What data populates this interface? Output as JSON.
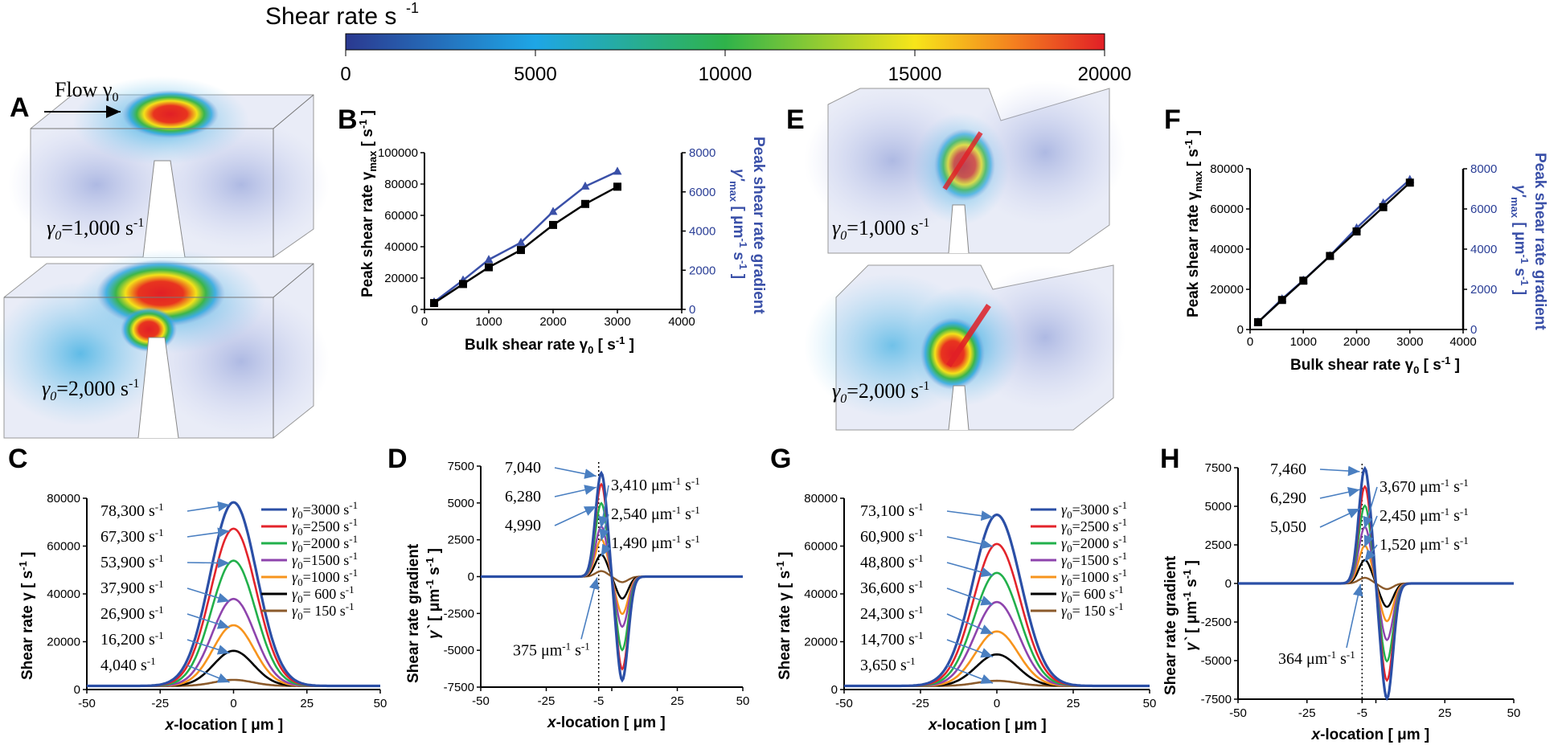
{
  "colorbar": {
    "title": "Shear rate s",
    "title_sup": "-1",
    "ticks": [
      "0",
      "5000",
      "10000",
      "15000",
      "20000"
    ]
  },
  "panel_labels": {
    "A": "A",
    "B": "B",
    "C": "C",
    "D": "D",
    "E": "E",
    "F": "F",
    "G": "G",
    "H": "H"
  },
  "sim_labels": {
    "flow": "Flow γ",
    "flow_sub": "0",
    "A_top": "γ",
    "A_top_sub": "0",
    "A_top_val": "=1,000 s",
    "A_top_sup": "-1",
    "A_bot": "γ",
    "A_bot_sub": "0",
    "A_bot_val": "=2,000 s",
    "A_bot_sup": "-1",
    "E_top": "γ",
    "E_top_sub": "0",
    "E_top_val": "=1,000 s",
    "E_top_sup": "-1",
    "E_bot": "γ",
    "E_bot_sub": "0",
    "E_bot_val": "=2,000 s",
    "E_bot_sup": "-1"
  },
  "colors": {
    "s3000": "#2b4fa6",
    "s2500": "#e3242b",
    "s2000": "#22b04b",
    "s1500": "#8e44ad",
    "s1000": "#f7941d",
    "s600": "#000000",
    "s150": "#8b5a2b",
    "arrow": "#4a7fc1",
    "blue_axis": "#3a50a8"
  },
  "legend": [
    "γ0=3000 s-1",
    "γ0=2500 s-1",
    "γ0=2000 s-1",
    "γ0=1500 s-1",
    "γ0=1000 s-1",
    "γ0= 600 s-1",
    "γ0= 150 s-1"
  ],
  "legend_parts": [
    {
      "pre": "γ",
      "sub": "0",
      "val": "=3000 s",
      "sup": "-1"
    },
    {
      "pre": "γ",
      "sub": "0",
      "val": "=2500 s",
      "sup": "-1"
    },
    {
      "pre": "γ",
      "sub": "0",
      "val": "=2000 s",
      "sup": "-1"
    },
    {
      "pre": "γ",
      "sub": "0",
      "val": "=1500 s",
      "sup": "-1"
    },
    {
      "pre": "γ",
      "sub": "0",
      "val": "=1000 s",
      "sup": "-1"
    },
    {
      "pre": "γ",
      "sub": "0",
      "val": "= 600 s",
      "sup": "-1"
    },
    {
      "pre": "γ",
      "sub": "0",
      "val": "= 150 s",
      "sup": "-1"
    }
  ],
  "chart_data": [
    {
      "panel": "B",
      "type": "line",
      "xlabel": "Bulk shear rate γ0 [ s-1 ]",
      "ylabel": "Peak shear rate γmax [ s-1 ]",
      "y2label": "Peak shear rate gradient γ'max [ μm-1 s-1 ]",
      "xlim": [
        0,
        4000
      ],
      "ylim": [
        0,
        100000
      ],
      "y2lim": [
        0,
        8000
      ],
      "x_ticks": [
        "0",
        "1000",
        "2000",
        "3000",
        "4000"
      ],
      "y_ticks": [
        "0",
        "20000",
        "40000",
        "60000",
        "80000",
        "100000"
      ],
      "y2_ticks": [
        "0",
        "2000",
        "4000",
        "6000",
        "8000"
      ],
      "series": [
        {
          "axis": "left",
          "marker": "square",
          "x": [
            150,
            600,
            1000,
            1500,
            2000,
            2500,
            3000
          ],
          "values": [
            4040,
            16200,
            26900,
            37900,
            53900,
            67300,
            78300
          ]
        },
        {
          "axis": "right",
          "marker": "triangle",
          "x": [
            150,
            600,
            1000,
            1500,
            2000,
            2500,
            3000
          ],
          "values": [
            375,
            1490,
            2540,
            3410,
            4990,
            6280,
            7040
          ]
        }
      ]
    },
    {
      "panel": "F",
      "type": "line",
      "xlabel": "Bulk shear rate γ0 [ s-1 ]",
      "ylabel": "Peak shear rate γmax [ s-1 ]",
      "y2label": "Peak shear rate gradient γ'max [ μm-1 s-1 ]",
      "xlim": [
        0,
        4000
      ],
      "ylim": [
        0,
        80000
      ],
      "y2lim": [
        0,
        8000
      ],
      "x_ticks": [
        "0",
        "1000",
        "2000",
        "3000",
        "4000"
      ],
      "y_ticks": [
        "0",
        "20000",
        "40000",
        "60000",
        "80000"
      ],
      "y2_ticks": [
        "0",
        "2000",
        "4000",
        "6000",
        "8000"
      ],
      "series": [
        {
          "axis": "left",
          "marker": "square",
          "x": [
            150,
            600,
            1000,
            1500,
            2000,
            2500,
            3000
          ],
          "values": [
            3650,
            14700,
            24300,
            36600,
            48800,
            60900,
            73100
          ]
        },
        {
          "axis": "right",
          "marker": "triangle",
          "x": [
            150,
            600,
            1000,
            1500,
            2000,
            2500,
            3000
          ],
          "values": [
            364,
            1520,
            2450,
            3670,
            5050,
            6290,
            7460
          ]
        }
      ]
    },
    {
      "panel": "C",
      "type": "line",
      "xlabel": "x-location [ μm ]",
      "ylabel": "Shear rate γ [ s-1 ]",
      "xlim": [
        -50,
        50
      ],
      "ylim": [
        0,
        80000
      ],
      "x_ticks": [
        "-50",
        "-25",
        "0",
        "25",
        "50"
      ],
      "y_ticks": [
        "0",
        "20000",
        "40000",
        "60000",
        "80000"
      ],
      "peaks": [
        78300,
        67300,
        53900,
        37900,
        26900,
        16200,
        4040
      ],
      "annotations": [
        "78,300 s-1",
        "67,300 s-1",
        "53,900 s-1",
        "37,900 s-1",
        "26,900 s-1",
        "16,200 s-1",
        "4,040 s-1"
      ]
    },
    {
      "panel": "D",
      "type": "line",
      "xlabel": "x-location [ μm ]",
      "ylabel": "Shear rate gradient γ` [ μm-1 s-1 ]",
      "xlim": [
        -50,
        50
      ],
      "ylim": [
        -7500,
        7500
      ],
      "x_ticks": [
        "-50",
        "-25",
        "-5",
        "0",
        "25",
        "50"
      ],
      "y_ticks": [
        "-7500",
        "-5000",
        "-2500",
        "0",
        "2500",
        "5000",
        "7500"
      ],
      "peaks": [
        7040,
        6280,
        4990,
        3410,
        2540,
        1490,
        375
      ],
      "annotations": [
        "7,040",
        "6,280",
        "4,990",
        "3,410 μm-1 s-1",
        "2,540 μm-1 s-1",
        "1,490 μm-1 s-1",
        "375 μm-1 s-1"
      ]
    },
    {
      "panel": "G",
      "type": "line",
      "xlabel": "x-location [ μm ]",
      "ylabel": "Shear rate γ [ s-1 ]",
      "xlim": [
        -50,
        50
      ],
      "ylim": [
        0,
        80000
      ],
      "x_ticks": [
        "-50",
        "-25",
        "0",
        "25",
        "50"
      ],
      "y_ticks": [
        "0",
        "20000",
        "40000",
        "60000",
        "80000"
      ],
      "peaks": [
        73100,
        60900,
        48800,
        36600,
        24300,
        14700,
        3650
      ],
      "annotations": [
        "73,100 s-1",
        "60,900 s-1",
        "48,800 s-1",
        "36,600 s-1",
        "24,300 s-1",
        "14,700 s-1",
        "3,650 s-1"
      ]
    },
    {
      "panel": "H",
      "type": "line",
      "xlabel": "x-location [ μm ]",
      "ylabel": "Shear rate gradient γ` [ μm-1 s-1 ]",
      "xlim": [
        -50,
        50
      ],
      "ylim": [
        -7500,
        7500
      ],
      "x_ticks": [
        "-50",
        "-25",
        "-5",
        "0",
        "25",
        "50"
      ],
      "y_ticks": [
        "-7500",
        "-5000",
        "-2500",
        "0",
        "2500",
        "5000",
        "7500"
      ],
      "peaks": [
        7460,
        6290,
        5050,
        3670,
        2450,
        1520,
        364
      ],
      "annotations": [
        "7,460",
        "6,290",
        "5,050",
        "3,670 μm-1 s-1",
        "2,450 μm-1 s-1",
        "1,520 μm-1 s-1",
        "364 μm-1 s-1"
      ]
    }
  ]
}
